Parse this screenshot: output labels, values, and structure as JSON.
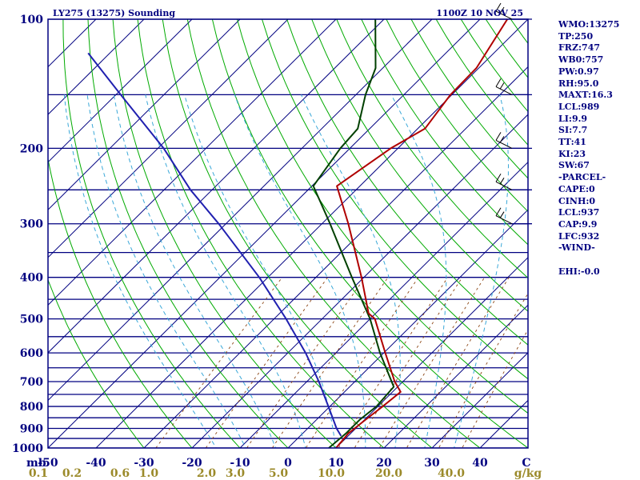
{
  "colors": {
    "isobar": "#000080",
    "dry_adiabat": "#00aa00",
    "moist_adiabat": "#008000",
    "mixing_ratio": "#8b4513",
    "isotherm_label": "#000080",
    "mixing_label": "#9b8a2a",
    "temperature": "#b00000",
    "dewpoint": "#004000",
    "parcel": "#2020b0",
    "wetbulb": "#3aa8d8",
    "wind": "#000000"
  },
  "chart_data": {
    "type": "skew-t",
    "title": "LY275 (13275) Sounding",
    "time": "1100Z 10 NOV 25",
    "yunit": "mb",
    "xunit": "C",
    "mixing_unit": "g/kg",
    "plim": [
      100,
      1000
    ],
    "pressure_grid": [
      100,
      150,
      200,
      250,
      300,
      350,
      400,
      450,
      500,
      550,
      600,
      650,
      700,
      750,
      800,
      850,
      900,
      950,
      1000
    ],
    "pressure_labels": [
      {
        "p": 100,
        "text": "100"
      },
      {
        "p": 200,
        "text": "200"
      },
      {
        "p": 300,
        "text": "300"
      },
      {
        "p": 400,
        "text": "400"
      },
      {
        "p": 500,
        "text": "500"
      },
      {
        "p": 600,
        "text": "600"
      },
      {
        "p": 700,
        "text": "700"
      },
      {
        "p": 800,
        "text": "800"
      },
      {
        "p": 900,
        "text": "900"
      },
      {
        "p": 1000,
        "text": "1000"
      }
    ],
    "temp_labels": [
      {
        "t": -50,
        "text": "-50"
      },
      {
        "t": -40,
        "text": "-40"
      },
      {
        "t": -30,
        "text": "-30"
      },
      {
        "t": -20,
        "text": "-20"
      },
      {
        "t": -10,
        "text": "-10"
      },
      {
        "t": 0,
        "text": "0"
      },
      {
        "t": 10,
        "text": "10"
      },
      {
        "t": 20,
        "text": "20"
      },
      {
        "t": 30,
        "text": "30"
      },
      {
        "t": 40,
        "text": "40"
      }
    ],
    "mixing_labels": [
      {
        "t": -52,
        "text": "0.1"
      },
      {
        "t": -45,
        "text": "0.2"
      },
      {
        "t": -35,
        "text": "0.6"
      },
      {
        "t": -29,
        "text": "1.0"
      },
      {
        "t": -17,
        "text": "2.0"
      },
      {
        "t": -11,
        "text": "3.0"
      },
      {
        "t": -2,
        "text": "5.0"
      },
      {
        "t": 9,
        "text": "10.0"
      },
      {
        "t": 21,
        "text": "20.0"
      },
      {
        "t": 34,
        "text": "40.0"
      }
    ],
    "temperature": [
      {
        "p": 1000,
        "t": 10.0
      },
      {
        "p": 925,
        "t": 9.5
      },
      {
        "p": 860,
        "t": 10.2
      },
      {
        "p": 800,
        "t": 11.0
      },
      {
        "p": 740,
        "t": 11.7
      },
      {
        "p": 700,
        "t": 8.3
      },
      {
        "p": 600,
        "t": 0.3
      },
      {
        "p": 500,
        "t": -9.0
      },
      {
        "p": 485,
        "t": -11.5
      },
      {
        "p": 400,
        "t": -20.5
      },
      {
        "p": 300,
        "t": -34.5
      },
      {
        "p": 245,
        "t": -44.8
      },
      {
        "p": 200,
        "t": -41.5
      },
      {
        "p": 180,
        "t": -38.5
      },
      {
        "p": 150,
        "t": -40.3
      },
      {
        "p": 130,
        "t": -40.5
      },
      {
        "p": 100,
        "t": -44.3
      }
    ],
    "dewpoint": [
      {
        "p": 1000,
        "t": 8.5
      },
      {
        "p": 925,
        "t": 9.0
      },
      {
        "p": 860,
        "t": 9.0
      },
      {
        "p": 800,
        "t": 9.7
      },
      {
        "p": 720,
        "t": 9.2
      },
      {
        "p": 600,
        "t": -0.8
      },
      {
        "p": 500,
        "t": -10.0
      },
      {
        "p": 400,
        "t": -22.5
      },
      {
        "p": 300,
        "t": -38.3
      },
      {
        "p": 245,
        "t": -49.7
      },
      {
        "p": 200,
        "t": -52.0
      },
      {
        "p": 180,
        "t": -52.5
      },
      {
        "p": 150,
        "t": -58.0
      },
      {
        "p": 130,
        "t": -61.5
      },
      {
        "p": 100,
        "t": -71.8
      }
    ],
    "parcel": [
      {
        "p": 937,
        "t": 8.5
      },
      {
        "p": 900,
        "t": 6.0
      },
      {
        "p": 800,
        "t": -0.3
      },
      {
        "p": 700,
        "t": -7.5
      },
      {
        "p": 600,
        "t": -16.3
      },
      {
        "p": 500,
        "t": -27.5
      },
      {
        "p": 400,
        "t": -41.8
      },
      {
        "p": 300,
        "t": -61.5
      },
      {
        "p": 250,
        "t": -74.5
      },
      {
        "p": 200,
        "t": -88.8
      },
      {
        "p": 150,
        "t": -109.0
      },
      {
        "p": 120,
        "t": -124.5
      }
    ],
    "wind_levels": [
      100,
      150,
      200,
      250,
      300
    ],
    "indices": [
      {
        "label": "WMO",
        "value": "13275"
      },
      {
        "label": "TP",
        "value": "250"
      },
      {
        "label": "FRZ",
        "value": "747"
      },
      {
        "label": "WB0",
        "value": "757"
      },
      {
        "label": "PW",
        "value": "0.97"
      },
      {
        "label": "RH",
        "value": "95.0"
      },
      {
        "label": "MAXT",
        "value": "16.3"
      },
      {
        "label": "LCL",
        "value": "989"
      },
      {
        "label": "LI",
        "value": "9.9"
      },
      {
        "label": "SI",
        "value": "7.7"
      },
      {
        "label": "TT",
        "value": "41"
      },
      {
        "label": "KI",
        "value": "23"
      },
      {
        "label": "SW",
        "value": "67"
      }
    ],
    "parcel_header": "-PARCEL-",
    "parcel_indices": [
      {
        "label": "CAPE",
        "value": "0"
      },
      {
        "label": "CINH",
        "value": "0"
      },
      {
        "label": "LCL",
        "value": "937"
      },
      {
        "label": "CAP",
        "value": "9.9"
      },
      {
        "label": "LFC",
        "value": "932"
      }
    ],
    "wind_header": "-WIND-",
    "wind_indices": [
      {
        "label": "EHI",
        "value": "-0.0"
      }
    ]
  }
}
